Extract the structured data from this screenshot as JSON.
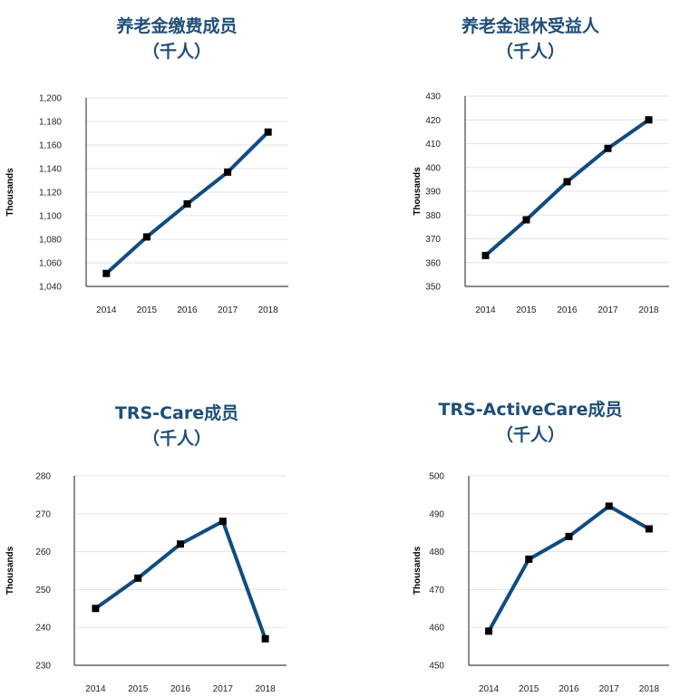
{
  "chart_data": [
    {
      "type": "line",
      "title": "养老金缴费成员",
      "subtitle": "（千人）",
      "ylabel": "Thousands",
      "categories": [
        "2014",
        "2015",
        "2016",
        "2017",
        "2018"
      ],
      "values": [
        1051,
        1082,
        1110,
        1137,
        1171
      ],
      "ylim": [
        1040,
        1200
      ],
      "yticks": [
        1040,
        1060,
        1080,
        1100,
        1120,
        1140,
        1160,
        1180,
        1200
      ],
      "ytick_labels": [
        "1,040",
        "1,060",
        "1,080",
        "1,100",
        "1,120",
        "1,140",
        "1,160",
        "1,180",
        "1,200"
      ],
      "grid": true,
      "line_color": "#0f4c81"
    },
    {
      "type": "line",
      "title": "养老金退休受益人",
      "subtitle": "（千人）",
      "ylabel": "Thousands",
      "categories": [
        "2014",
        "2015",
        "2016",
        "2017",
        "2018"
      ],
      "values": [
        363,
        378,
        394,
        408,
        420
      ],
      "ylim": [
        350,
        430
      ],
      "yticks": [
        350,
        360,
        370,
        380,
        390,
        400,
        410,
        420,
        430
      ],
      "ytick_labels": [
        "350",
        "360",
        "370",
        "380",
        "390",
        "400",
        "410",
        "420",
        "430"
      ],
      "grid": true,
      "line_color": "#0f4c81"
    },
    {
      "type": "line",
      "title": "TRS-Care成员",
      "subtitle": "（千人）",
      "ylabel": "Thousands",
      "categories": [
        "2014",
        "2015",
        "2016",
        "2017",
        "2018"
      ],
      "values": [
        245,
        253,
        262,
        268,
        237
      ],
      "ylim": [
        230,
        280
      ],
      "yticks": [
        230,
        240,
        250,
        260,
        270,
        280
      ],
      "ytick_labels": [
        "230",
        "240",
        "250",
        "260",
        "270",
        "280"
      ],
      "grid": true,
      "line_color": "#0f4c81"
    },
    {
      "type": "line",
      "title": "TRS-ActiveCare成员",
      "subtitle": "（千人）",
      "ylabel": "Thousands",
      "categories": [
        "2014",
        "2015",
        "2016",
        "2017",
        "2018"
      ],
      "values": [
        459,
        478,
        484,
        492,
        486
      ],
      "ylim": [
        450,
        500
      ],
      "yticks": [
        450,
        460,
        470,
        480,
        490,
        500
      ],
      "ytick_labels": [
        "450",
        "460",
        "470",
        "480",
        "490",
        "500"
      ],
      "grid": true,
      "line_color": "#0f4c81"
    }
  ]
}
